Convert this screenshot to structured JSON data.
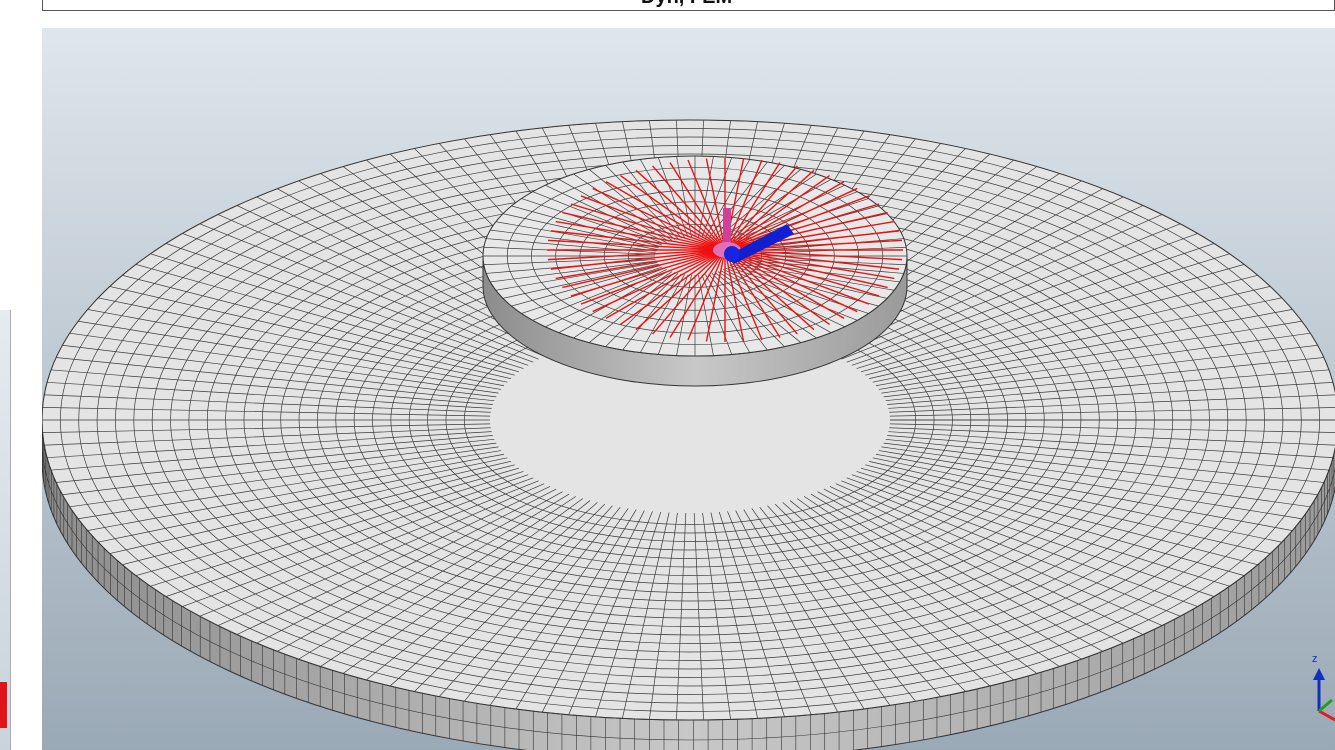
{
  "header": {
    "title": "Dyn, FEM"
  },
  "axis": {
    "z": "z"
  }
}
